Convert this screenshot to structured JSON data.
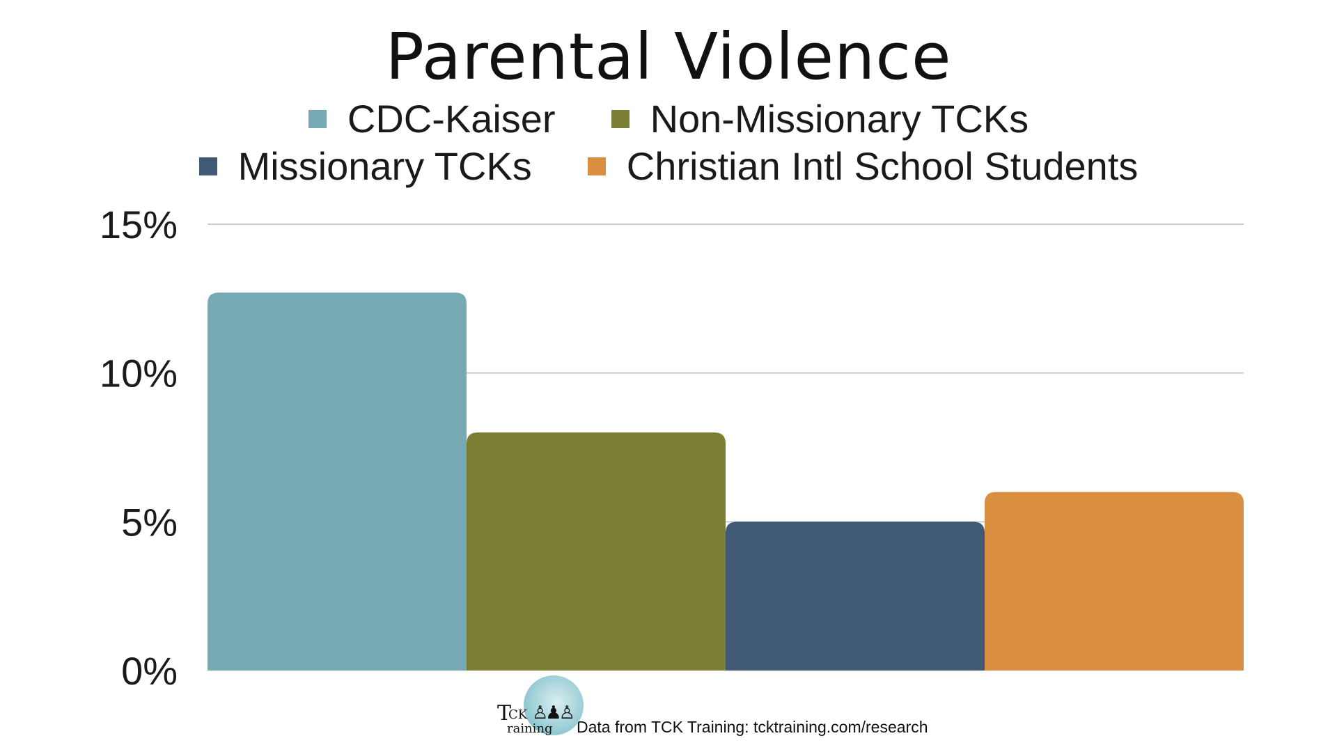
{
  "chart_data": {
    "type": "bar",
    "title": "Parental Violence",
    "categories": [
      "CDC-Kaiser",
      "Non-Missionary TCKs",
      "Missionary TCKs",
      "Christian Intl School Students"
    ],
    "values": [
      12.7,
      8.0,
      5.0,
      6.0
    ],
    "colors": [
      "#77a9b5",
      "#7b7f33",
      "#405a76",
      "#da8f40"
    ],
    "ylim": [
      0,
      15
    ],
    "yticks": [
      "0%",
      "5%",
      "10%",
      "15%"
    ],
    "ytick_values": [
      0,
      5,
      10,
      15
    ],
    "grid": true,
    "legend_position": "top-center"
  },
  "legend": {
    "row1": [
      "CDC-Kaiser",
      "Non-Missionary TCKs"
    ],
    "row2": [
      "Missionary TCKs",
      "Christian Intl School Students"
    ]
  },
  "footer": {
    "logo_letters_main": "T",
    "logo_letters_top": "CK",
    "logo_letters_sub": "raining",
    "logo_icon": "family-silhouette-icon",
    "source_text": "Data from TCK Training: tcktraining.com/research"
  }
}
